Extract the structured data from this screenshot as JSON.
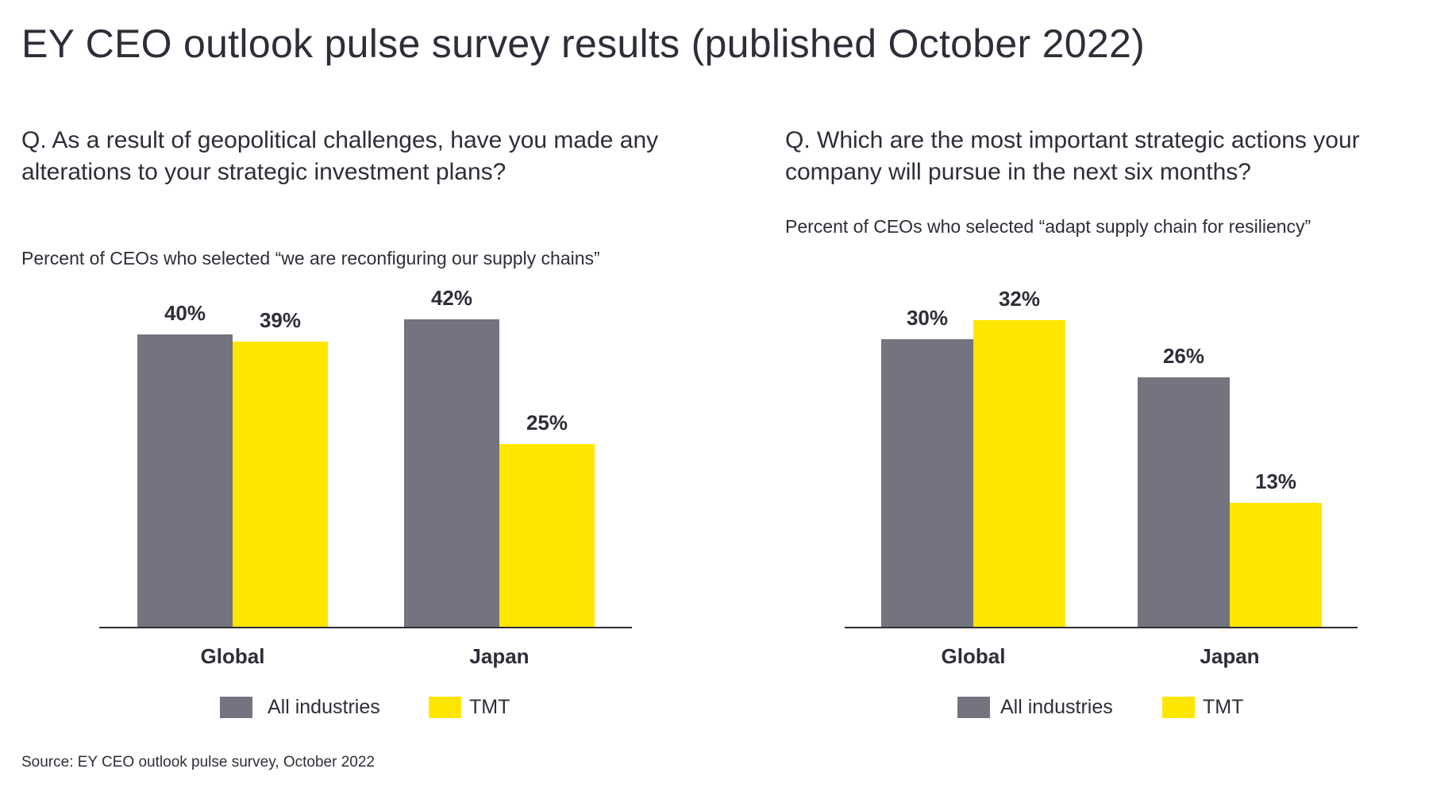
{
  "title": "EY CEO outlook pulse survey results (published October 2022)",
  "source": "Source: EY CEO outlook pulse survey, October 2022",
  "colors": {
    "all_industries": "#747480",
    "tmt": "#ffe600",
    "text": "#2e2e38"
  },
  "chart_data": [
    {
      "type": "bar",
      "title": "Q. As a result of geopolitical challenges, have you made any alterations to your strategic investment plans?",
      "subtitle": "Percent of CEOs who selected “we are reconfiguring our supply chains”",
      "categories": [
        "Global",
        "Japan"
      ],
      "series": [
        {
          "name": "All industries",
          "values": [
            40,
            42
          ],
          "labels": [
            "40%",
            "42%"
          ]
        },
        {
          "name": "TMT",
          "values": [
            39,
            25
          ],
          "labels": [
            "39%",
            "25%"
          ]
        }
      ],
      "ylim": [
        0,
        45
      ],
      "legend": "bottom"
    },
    {
      "type": "bar",
      "title": "Q. Which are the most important strategic actions your company will pursue in the next six months?",
      "subtitle": "Percent of CEOs who selected “adapt supply chain for resiliency”",
      "categories": [
        "Global",
        "Japan"
      ],
      "series": [
        {
          "name": "All industries",
          "values": [
            30,
            26
          ],
          "labels": [
            "30%",
            "26%"
          ]
        },
        {
          "name": "TMT",
          "values": [
            32,
            13
          ],
          "labels": [
            "32%",
            "13%"
          ]
        }
      ],
      "ylim": [
        0,
        35
      ],
      "legend": "bottom"
    }
  ]
}
